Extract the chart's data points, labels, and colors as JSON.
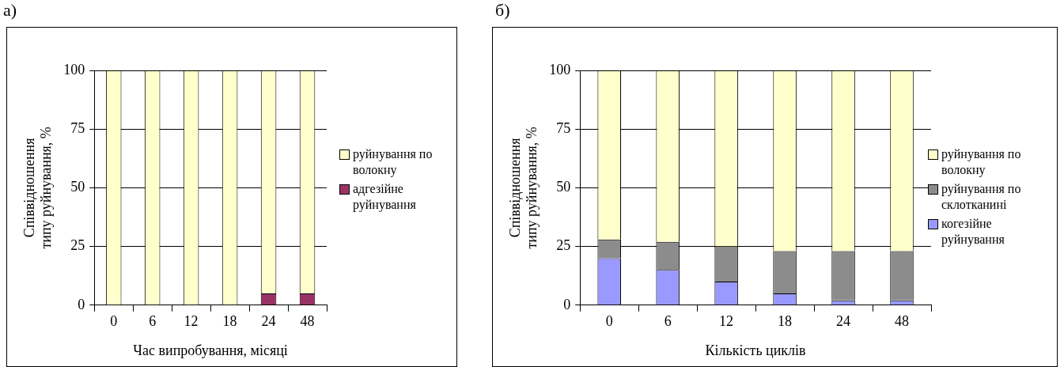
{
  "chart_data": [
    {
      "type": "bar",
      "title": "а)",
      "stacked": true,
      "categories": [
        "0",
        "6",
        "12",
        "18",
        "24",
        "48"
      ],
      "xlabel": "Час випробування, місяці",
      "ylabel": "Співвідношення типу руйнування, %",
      "ylim": [
        0,
        100
      ],
      "yticks": [
        0,
        25,
        50,
        75,
        100
      ],
      "grid": "y",
      "legend": "right",
      "series": [
        {
          "name": "адгезійне руйнування",
          "color": "#993366",
          "values": [
            0,
            0,
            0,
            0,
            5,
            5
          ]
        },
        {
          "name": "руйнування по волокну",
          "color": "#ffffcc",
          "values": [
            100,
            100,
            100,
            100,
            95,
            95
          ]
        }
      ]
    },
    {
      "type": "bar",
      "title": "б)",
      "stacked": true,
      "categories": [
        "0",
        "6",
        "12",
        "18",
        "24",
        "48"
      ],
      "xlabel": "Кількість циклів",
      "ylabel": "Співвідношення типу руйнування, %",
      "ylim": [
        0,
        100
      ],
      "yticks": [
        0,
        25,
        50,
        75,
        100
      ],
      "grid": "y",
      "legend": "right",
      "series": [
        {
          "name": "когезійне руйнування",
          "color": "#9999ff",
          "values": [
            20,
            15,
            10,
            5,
            2,
            2
          ]
        },
        {
          "name": "руйнування по склотканині",
          "color": "#8c8c8c",
          "values": [
            8,
            12,
            15,
            18,
            21,
            21
          ]
        },
        {
          "name": "руйнування по волокну",
          "color": "#ffffcc",
          "values": [
            72,
            73,
            75,
            77,
            77,
            77
          ]
        }
      ]
    }
  ]
}
